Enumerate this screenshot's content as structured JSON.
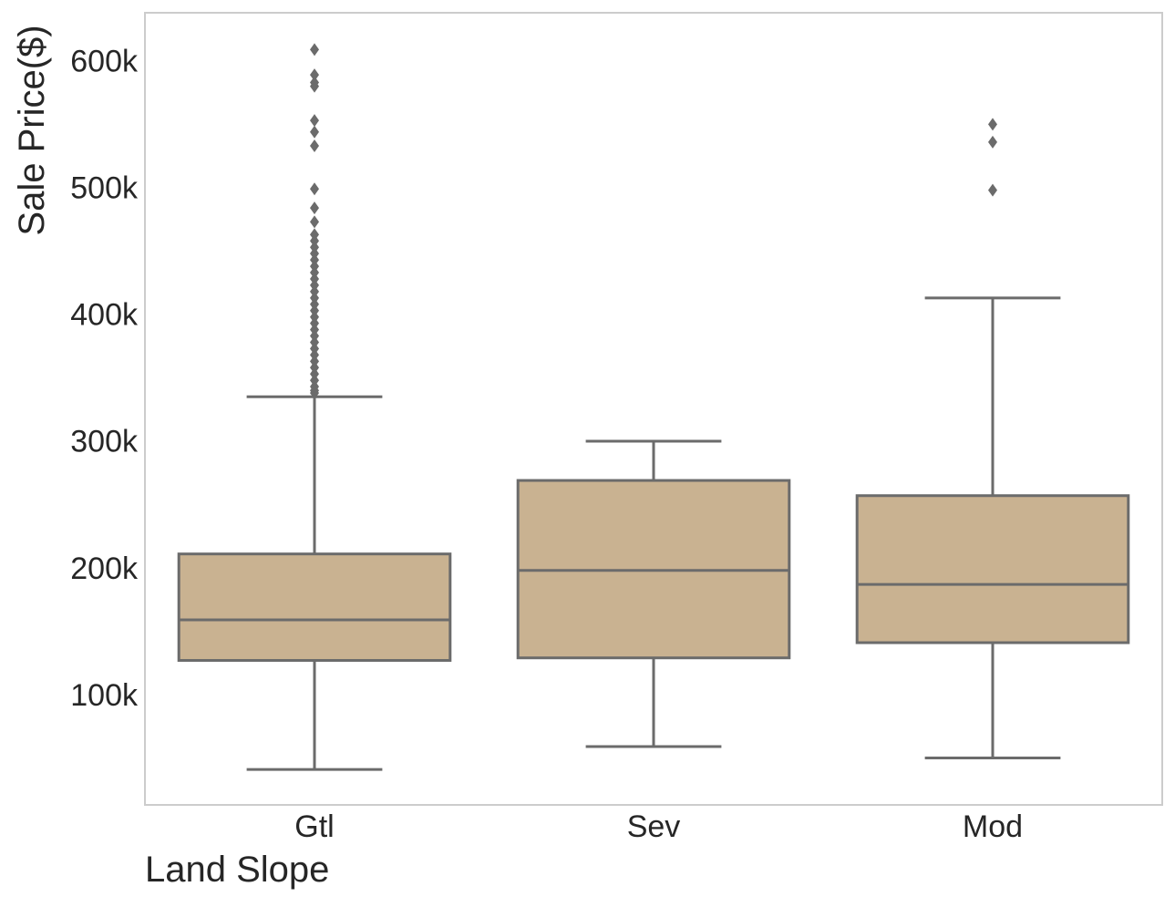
{
  "chart_data": {
    "type": "box",
    "title": "",
    "xlabel": "Land Slope",
    "ylabel": "Sale Price($)",
    "ylim": [
      15000,
      640000
    ],
    "yticks": [
      100000,
      200000,
      300000,
      400000,
      500000,
      600000
    ],
    "ytick_labels": [
      "100k",
      "200k",
      "300k",
      "400k",
      "500k",
      "600k"
    ],
    "grid": false,
    "box_color": "#c9b291",
    "line_color": "#6b6b6b",
    "frame_color": "#cccccc",
    "categories": [
      "Gtl",
      "Sev",
      "Mod"
    ],
    "boxes": [
      {
        "category": "Gtl",
        "whisker_low": 43000,
        "q1": 129000,
        "median": 161000,
        "q3": 213000,
        "whisker_high": 337000,
        "outliers": [
          340000,
          342000,
          345000,
          350000,
          355000,
          360000,
          365000,
          370000,
          375000,
          380000,
          385000,
          390000,
          395000,
          400000,
          405000,
          410000,
          415000,
          420000,
          425000,
          430000,
          435000,
          440000,
          445000,
          450000,
          455000,
          460000,
          465000,
          475000,
          486000,
          501000,
          535000,
          546000,
          555000,
          582000,
          585000,
          591000,
          611000
        ]
      },
      {
        "category": "Sev",
        "whisker_low": 61000,
        "q1": 131000,
        "median": 200000,
        "q3": 271000,
        "whisker_high": 302000,
        "outliers": []
      },
      {
        "category": "Mod",
        "whisker_low": 52000,
        "q1": 143000,
        "median": 189000,
        "q3": 259000,
        "whisker_high": 415000,
        "outliers": [
          500000,
          538000,
          552000
        ]
      }
    ]
  }
}
